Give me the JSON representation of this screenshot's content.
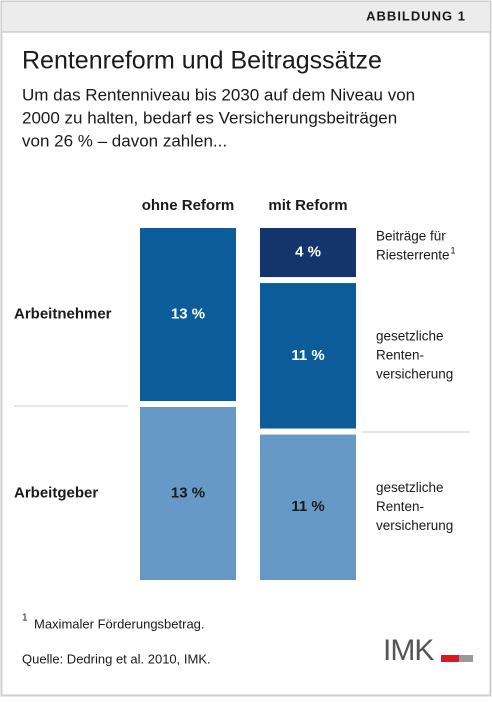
{
  "chart_data": {
    "type": "stacked-bar",
    "label": "ABBILDUNG 1",
    "title": "Rentenreform und Beitragssätze",
    "subtitle_lines": [
      "Um das Rentenniveau bis 2030 auf dem Niveau von",
      "2000 zu halten, bedarf es Versicherungsbeiträgen",
      "von 26 % – davon zahlen..."
    ],
    "categories": [
      "ohne Reform",
      "mit Reform"
    ],
    "series": [
      {
        "name": "Arbeitgeber",
        "color": "#6699c6",
        "text_color": "#1a1a1a",
        "values": [
          13,
          11
        ],
        "value_labels": [
          "13 %",
          "11 %"
        ],
        "note_lines": [
          "gesetzliche",
          "Renten-",
          "versicherung"
        ]
      },
      {
        "name": "Arbeitnehmer",
        "color": "#0b5c99",
        "text_color": "#ffffff",
        "values": [
          13,
          11
        ],
        "value_labels": [
          "13 %",
          "11 %"
        ],
        "note_lines": [
          "gesetzliche",
          "Renten-",
          "versicherung"
        ]
      },
      {
        "color": "#14356b",
        "text_color": "#ffffff",
        "values": [
          null,
          4
        ],
        "value_labels": [
          null,
          "4 %"
        ],
        "note_lines": [
          "Beiträge für",
          "Riesterrente"
        ],
        "note_mark": "1"
      }
    ],
    "footnote_mark": "1",
    "footnote": "Maximaler Förderungsbetrag.",
    "source": "Quelle: Dedring et al. 2010, IMK.",
    "logo": "IMK"
  }
}
